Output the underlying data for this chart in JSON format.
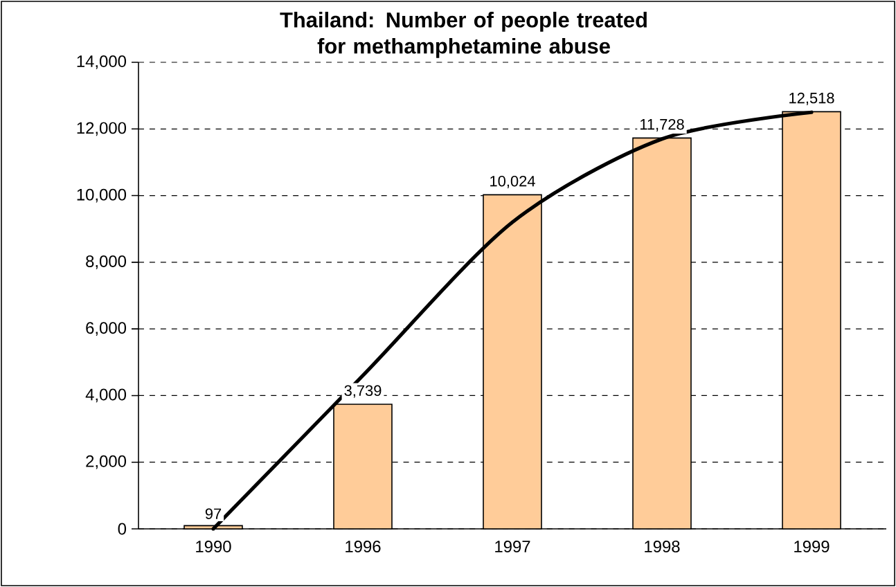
{
  "chart_data": {
    "type": "bar",
    "title": "Thailand: Number of people treated  for methamphetamine abuse",
    "categories": [
      "1990",
      "1996",
      "1997",
      "1998",
      "1999"
    ],
    "series": [
      {
        "color": "#ffcc99",
        "values": [
          97,
          3739,
          10024,
          11728,
          12518
        ],
        "value_labels": [
          "97",
          "3,739",
          "10,024",
          "11,728",
          "12,518"
        ]
      },
      {
        "type": "line",
        "color": "#000000",
        "values": [
          0,
          4600,
          9200,
          11700,
          12500
        ]
      }
    ],
    "ylim": [
      0,
      14000
    ],
    "yticks": [
      0,
      {
        "value": 2000,
        "label": "2,000"
      },
      {
        "value": 4000,
        "label": "4,000"
      },
      {
        "value": 6000,
        "label": "6,000"
      },
      {
        "value": 8000,
        "label": "8,000"
      },
      {
        "value": 10000,
        "label": "10,000"
      },
      {
        "value": 12000,
        "label": "12,000"
      },
      {
        "value": 14000,
        "label": "14,000"
      }
    ],
    "grid": "y"
  }
}
